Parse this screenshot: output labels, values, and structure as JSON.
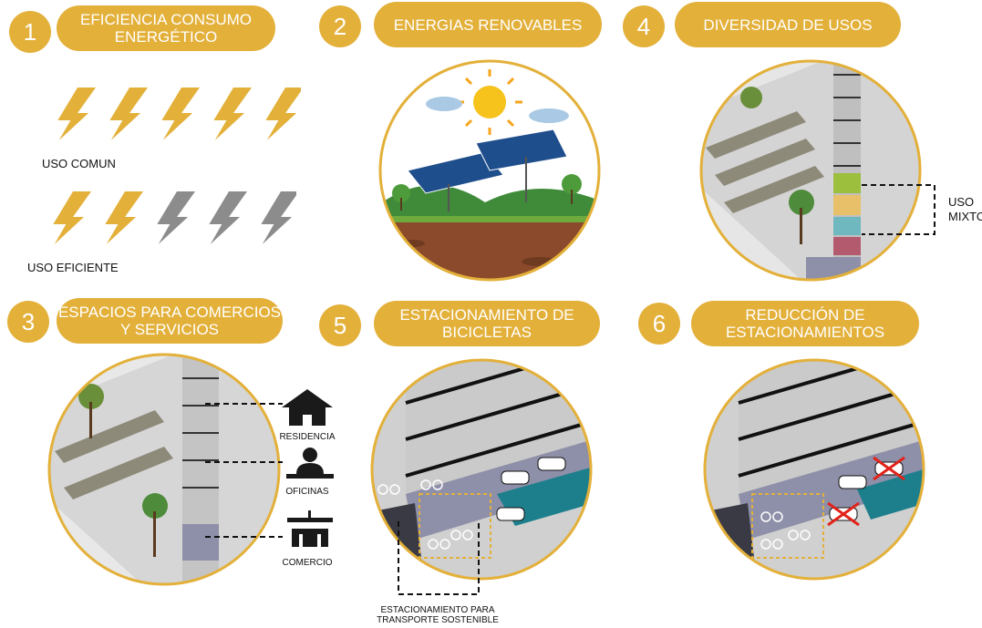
{
  "sections": [
    {
      "number": "1",
      "title_lines": [
        "EFICIENCIA CONSUMO",
        "ENERGÉTICO"
      ]
    },
    {
      "number": "2",
      "title_lines": [
        "ENERGIAS RENOVABLES"
      ]
    },
    {
      "number": "4",
      "title_lines": [
        "DIVERSIDAD DE USOS"
      ]
    },
    {
      "number": "3",
      "title_lines": [
        "ESPACIOS PARA COMERCIOS",
        "Y SERVICIOS"
      ]
    },
    {
      "number": "5",
      "title_lines": [
        "ESTACIONAMIENTO DE",
        "BICICLETAS"
      ]
    },
    {
      "number": "6",
      "title_lines": [
        "REDUCCIÓN DE",
        "ESTACIONAMIENTOS"
      ]
    }
  ],
  "energy": {
    "row1_label": "USO COMUN",
    "row2_label": "USO EFICIENTE",
    "row1_colored": 5,
    "row2_colored": 2,
    "bolts_per_row": 5,
    "colors": {
      "gold": "#E3B03A",
      "gray": "#8C8C8C"
    }
  },
  "mixed_use": {
    "label_lines": [
      "USO",
      "MIXTO"
    ]
  },
  "commerce": {
    "labels": [
      "RESIDENCIA",
      "OFICINAS",
      "COMERCIO"
    ]
  },
  "bike_parking": {
    "caption_lines": [
      "ESTACIONAMIENTO PARA",
      "TRANSPORTE SOSTENIBLE"
    ]
  },
  "colors": {
    "accent": "#E3B03A",
    "teal": "#1E7F8C"
  }
}
